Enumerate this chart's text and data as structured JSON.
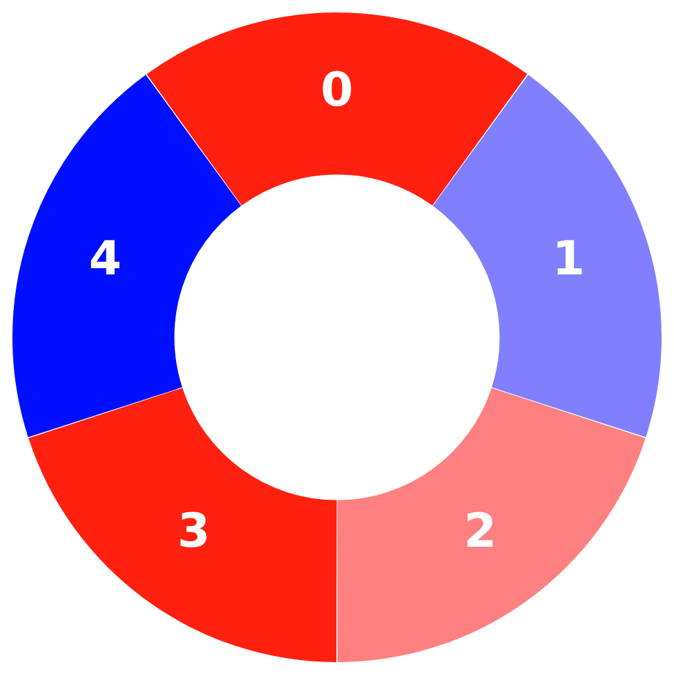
{
  "chart_data": {
    "type": "donut",
    "categories": [
      "0",
      "1",
      "2",
      "3",
      "4"
    ],
    "values": [
      20,
      20,
      20,
      20,
      20
    ],
    "colors": [
      "#ff2010",
      "#8080ff",
      "#ff8080",
      "#ff2010",
      "#0010ff"
    ],
    "legend": false
  }
}
